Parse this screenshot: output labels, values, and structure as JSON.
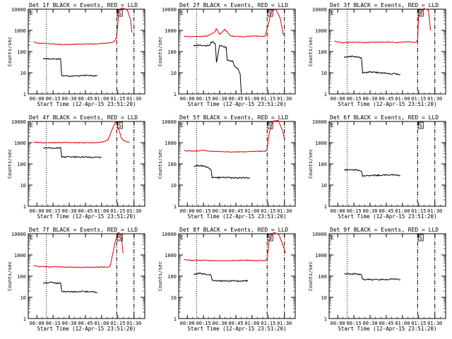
{
  "figure": {
    "title_black": "BLACK = Events,",
    "title_red": "RED = LLD",
    "xlabel": "Start Time (12-Apr-15 23:51:20)",
    "ylabel": "Counts/sec",
    "x_ticks": [
      "00:00",
      "00:15",
      "00:30",
      "00:45",
      "01:00",
      "01:15",
      "01:30"
    ],
    "y_ticks": [
      "1",
      "10",
      "100",
      "1000",
      "10000"
    ],
    "colors": {
      "events": "#000000",
      "lld": "#e00000",
      "axes": "#000000",
      "background": "#ffffff"
    },
    "marker_label": "S",
    "corner_label": "E"
  },
  "chart_data": [
    {
      "type": "line",
      "title": "Det 1f BLACK = Events, RED = LLD",
      "detector": "Det 1f",
      "xlabel": "Start Time (12-Apr-15 23:51:20)",
      "ylabel": "Counts/sec",
      "x_unit": "minutes",
      "xlim": [
        -8,
        100
      ],
      "ylim": [
        1,
        10000
      ],
      "yscale": "log",
      "vlines_min": [
        8.7,
        74,
        90
      ],
      "events": [
        [
          6,
          45
        ],
        [
          12,
          47
        ],
        [
          18,
          44
        ],
        [
          22,
          46
        ],
        [
          23,
          7
        ],
        [
          32,
          6.8
        ],
        [
          40,
          7.2
        ],
        [
          47,
          7.5
        ],
        [
          53,
          7.0
        ],
        [
          56,
          7.3
        ]
      ],
      "lld": [
        [
          -3,
          280
        ],
        [
          0,
          250
        ],
        [
          8,
          240
        ],
        [
          15,
          230
        ],
        [
          25,
          215
        ],
        [
          35,
          220
        ],
        [
          45,
          225
        ],
        [
          55,
          230
        ],
        [
          70,
          270
        ],
        [
          72,
          300
        ],
        [
          74,
          500
        ],
        [
          76,
          9000
        ],
        [
          79,
          12000
        ],
        [
          84,
          9000
        ],
        [
          87,
          3000
        ],
        [
          88,
          800
        ]
      ]
    },
    {
      "type": "line",
      "title": "Det 2f BLACK = Events, RED = LLD",
      "detector": "Det 2f",
      "xlabel": "Start Time (12-Apr-15 23:51:20)",
      "ylabel": "Counts/sec",
      "x_unit": "minutes",
      "xlim": [
        -8,
        100
      ],
      "ylim": [
        1,
        10000
      ],
      "yscale": "log",
      "vlines_min": [
        8.7,
        74,
        90
      ],
      "events": [
        [
          6,
          190
        ],
        [
          12,
          200
        ],
        [
          18,
          190
        ],
        [
          21,
          200
        ],
        [
          22,
          270
        ],
        [
          24,
          280
        ],
        [
          26,
          230
        ],
        [
          27,
          30
        ],
        [
          30,
          200
        ],
        [
          33,
          180
        ],
        [
          36,
          150
        ],
        [
          37,
          40
        ],
        [
          42,
          35
        ],
        [
          44,
          20
        ],
        [
          47,
          15
        ],
        [
          49,
          8
        ],
        [
          50,
          1.2
        ]
      ],
      "lld": [
        [
          -3,
          520
        ],
        [
          5,
          500
        ],
        [
          12,
          510
        ],
        [
          18,
          540
        ],
        [
          25,
          800
        ],
        [
          27,
          1200
        ],
        [
          30,
          650
        ],
        [
          35,
          1100
        ],
        [
          40,
          550
        ],
        [
          50,
          500
        ],
        [
          62,
          540
        ],
        [
          72,
          520
        ],
        [
          74,
          1200
        ],
        [
          78,
          8000
        ],
        [
          82,
          10000
        ],
        [
          86,
          4000
        ],
        [
          89,
          600
        ]
      ]
    },
    {
      "type": "line",
      "title": "Det 3f BLACK = Events, RED = LLD",
      "detector": "Det 3f",
      "xlabel": "Start Time (12-Apr-15 23:51:20)",
      "ylabel": "Counts/sec",
      "x_unit": "minutes",
      "xlim": [
        -8,
        100
      ],
      "ylim": [
        1,
        10000
      ],
      "yscale": "log",
      "vlines_min": [
        8.7,
        74,
        90
      ],
      "events": [
        [
          6,
          55
        ],
        [
          12,
          60
        ],
        [
          18,
          55
        ],
        [
          22,
          50
        ],
        [
          23,
          10
        ],
        [
          30,
          11
        ],
        [
          40,
          10
        ],
        [
          50,
          9
        ],
        [
          58,
          8.5
        ]
      ],
      "lld": [
        [
          -3,
          300
        ],
        [
          5,
          260
        ],
        [
          15,
          280
        ],
        [
          25,
          270
        ],
        [
          35,
          275
        ],
        [
          45,
          280
        ],
        [
          55,
          270
        ],
        [
          65,
          290
        ],
        [
          72,
          270
        ],
        [
          74,
          350
        ],
        [
          75,
          5000
        ],
        [
          80,
          11000
        ],
        [
          84,
          9000
        ],
        [
          86,
          1000
        ]
      ]
    },
    {
      "type": "line",
      "title": "Det 4f BLACK = Events, RED = LLD",
      "detector": "Det 4f",
      "xlabel": "Start Time (12-Apr-15 23:51:20)",
      "ylabel": "Counts/sec",
      "x_unit": "minutes",
      "xlim": [
        -8,
        100
      ],
      "ylim": [
        1,
        10000
      ],
      "yscale": "log",
      "vlines_min": [
        8.7,
        74,
        90
      ],
      "events": [
        [
          6,
          560
        ],
        [
          12,
          570
        ],
        [
          18,
          560
        ],
        [
          22,
          555
        ],
        [
          23,
          210
        ],
        [
          32,
          215
        ],
        [
          42,
          210
        ],
        [
          52,
          205
        ],
        [
          60,
          200
        ]
      ],
      "lld": [
        [
          -3,
          1050
        ],
        [
          5,
          1000
        ],
        [
          15,
          1000
        ],
        [
          25,
          1010
        ],
        [
          35,
          1000
        ],
        [
          45,
          1000
        ],
        [
          55,
          1020
        ],
        [
          62,
          1100
        ],
        [
          66,
          1400
        ],
        [
          68,
          2500
        ],
        [
          71,
          6000
        ],
        [
          73,
          10000
        ],
        [
          76,
          4000
        ],
        [
          78,
          1800
        ],
        [
          80,
          1300
        ],
        [
          86,
          1000
        ]
      ]
    },
    {
      "type": "line",
      "title": "Det 5f BLACK = Events, RED = LLD",
      "detector": "Det 5f",
      "xlabel": "Start Time (12-Apr-15 23:51:20)",
      "ylabel": "Counts/sec",
      "x_unit": "minutes",
      "xlim": [
        -8,
        100
      ],
      "ylim": [
        1,
        10000
      ],
      "yscale": "log",
      "vlines_min": [
        8.7,
        74,
        90
      ],
      "events": [
        [
          6,
          75
        ],
        [
          10,
          85
        ],
        [
          14,
          80
        ],
        [
          18,
          70
        ],
        [
          22,
          55
        ],
        [
          23,
          22
        ],
        [
          32,
          23
        ],
        [
          42,
          22
        ],
        [
          52,
          22
        ],
        [
          58,
          21
        ]
      ],
      "lld": [
        [
          -3,
          420
        ],
        [
          5,
          400
        ],
        [
          15,
          430
        ],
        [
          25,
          380
        ],
        [
          35,
          370
        ],
        [
          45,
          360
        ],
        [
          55,
          380
        ],
        [
          65,
          400
        ],
        [
          72,
          380
        ],
        [
          74,
          500
        ],
        [
          76,
          3000
        ],
        [
          79,
          10000
        ],
        [
          84,
          12000
        ],
        [
          88,
          4000
        ],
        [
          90,
          1500
        ]
      ]
    },
    {
      "type": "line",
      "title": "Det 6f BLACK = Events, RED = LLD",
      "detector": "Det 6f",
      "xlabel": "Start Time (12-Apr-15 23:51:20)",
      "ylabel": "Counts/sec",
      "x_unit": "minutes",
      "xlim": [
        -8,
        100
      ],
      "ylim": [
        1,
        10000
      ],
      "yscale": "log",
      "vlines_min": [
        8.7,
        74,
        90
      ],
      "events": [
        [
          6,
          50
        ],
        [
          12,
          55
        ],
        [
          18,
          50
        ],
        [
          22,
          48
        ],
        [
          23,
          27
        ],
        [
          32,
          28
        ],
        [
          42,
          30
        ],
        [
          50,
          30
        ],
        [
          58,
          28
        ]
      ],
      "lld": []
    },
    {
      "type": "line",
      "title": "Det 7f BLACK = Events, RED = LLD",
      "detector": "Det 7f",
      "xlabel": "Start Time (12-Apr-15 23:51:20)",
      "ylabel": "Counts/sec",
      "x_unit": "minutes",
      "xlim": [
        -8,
        100
      ],
      "ylim": [
        1,
        10000
      ],
      "yscale": "log",
      "vlines_min": [
        8.7,
        74,
        90
      ],
      "events": [
        [
          6,
          45
        ],
        [
          12,
          50
        ],
        [
          18,
          47
        ],
        [
          22,
          46
        ],
        [
          23,
          19
        ],
        [
          32,
          18
        ],
        [
          42,
          19
        ],
        [
          52,
          18
        ],
        [
          56,
          17
        ]
      ],
      "lld": [
        [
          -3,
          300
        ],
        [
          5,
          280
        ],
        [
          15,
          275
        ],
        [
          25,
          270
        ],
        [
          35,
          265
        ],
        [
          45,
          260
        ],
        [
          55,
          265
        ],
        [
          62,
          270
        ],
        [
          66,
          260
        ],
        [
          68,
          300
        ],
        [
          72,
          3000
        ],
        [
          75,
          12000
        ],
        [
          78,
          9000
        ],
        [
          80,
          1200
        ]
      ]
    },
    {
      "type": "line",
      "title": "Det 8f BLACK = Events, RED = LLD",
      "detector": "Det 8f",
      "xlabel": "Start Time (12-Apr-15 23:51:20)",
      "ylabel": "Counts/sec",
      "x_unit": "minutes",
      "xlim": [
        -8,
        100
      ],
      "ylim": [
        1,
        10000
      ],
      "yscale": "log",
      "vlines_min": [
        8.7,
        74,
        90
      ],
      "events": [
        [
          6,
          125
        ],
        [
          12,
          135
        ],
        [
          18,
          120
        ],
        [
          22,
          115
        ],
        [
          23,
          62
        ],
        [
          32,
          60
        ],
        [
          42,
          60
        ],
        [
          52,
          58
        ],
        [
          56,
          60
        ]
      ],
      "lld": [
        [
          -3,
          600
        ],
        [
          5,
          550
        ],
        [
          15,
          560
        ],
        [
          25,
          540
        ],
        [
          35,
          530
        ],
        [
          45,
          550
        ],
        [
          55,
          560
        ],
        [
          65,
          540
        ],
        [
          72,
          530
        ],
        [
          74,
          700
        ],
        [
          76,
          5000
        ],
        [
          80,
          12000
        ],
        [
          85,
          9000
        ],
        [
          89,
          2500
        ],
        [
          91,
          1200
        ]
      ]
    },
    {
      "type": "line",
      "title": "Det 9f BLACK = Events, RED = LLD",
      "detector": "Det 9f",
      "xlabel": "Start Time (12-Apr-15 23:51:20)",
      "ylabel": "Counts/sec",
      "x_unit": "minutes",
      "xlim": [
        -8,
        100
      ],
      "ylim": [
        1,
        10000
      ],
      "yscale": "log",
      "vlines_min": [
        8.7,
        74,
        90
      ],
      "events": [
        [
          6,
          125
        ],
        [
          12,
          130
        ],
        [
          18,
          125
        ],
        [
          22,
          122
        ],
        [
          23,
          70
        ],
        [
          32,
          68
        ],
        [
          42,
          70
        ],
        [
          52,
          72
        ],
        [
          58,
          70
        ]
      ],
      "lld": []
    }
  ]
}
